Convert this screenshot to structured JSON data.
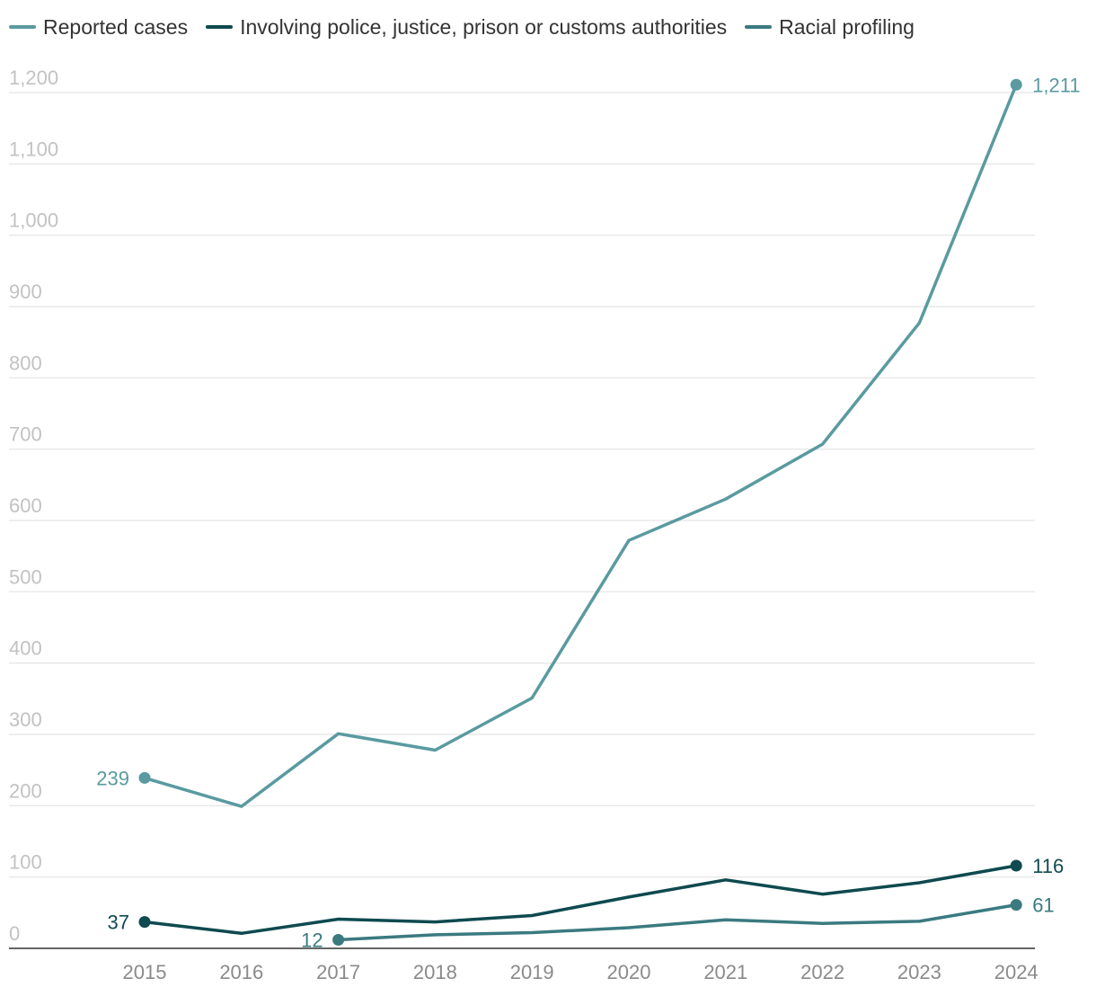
{
  "chart_data": {
    "type": "line",
    "title": "",
    "xlabel": "",
    "ylabel": "",
    "ylim": [
      0,
      1200
    ],
    "yticks": [
      0,
      100,
      200,
      300,
      400,
      500,
      600,
      700,
      800,
      900,
      1000,
      1100,
      1200
    ],
    "ytick_labels": [
      "0",
      "100",
      "200",
      "300",
      "400",
      "500",
      "600",
      "700",
      "800",
      "900",
      "1,000",
      "1,100",
      "1,200"
    ],
    "categories": [
      "2015",
      "2016",
      "2017",
      "2018",
      "2019",
      "2020",
      "2021",
      "2022",
      "2023",
      "2024"
    ],
    "grid": true,
    "legend_position": "top-left",
    "series": [
      {
        "name": "Reported cases",
        "color": "#5a9aa0",
        "values": [
          239,
          199,
          301,
          278,
          351,
          572,
          630,
          707,
          877,
          1211
        ],
        "annotations": [
          {
            "index": 0,
            "text": "239",
            "side": "left"
          },
          {
            "index": 9,
            "text": "1,211",
            "side": "right"
          }
        ]
      },
      {
        "name": "Involving police, justice, prison or customs authorities",
        "color": "#0e4a4f",
        "values": [
          37,
          21,
          41,
          37,
          46,
          72,
          96,
          76,
          92,
          116
        ],
        "annotations": [
          {
            "index": 0,
            "text": "37",
            "side": "left"
          },
          {
            "index": 9,
            "text": "116",
            "side": "right"
          }
        ]
      },
      {
        "name": "Racial profiling",
        "color": "#3a7a80",
        "values": [
          null,
          null,
          12,
          19,
          22,
          29,
          40,
          35,
          38,
          61
        ],
        "annotations": [
          {
            "index": 2,
            "text": "12",
            "side": "left"
          },
          {
            "index": 9,
            "text": "61",
            "side": "right"
          }
        ]
      }
    ]
  }
}
